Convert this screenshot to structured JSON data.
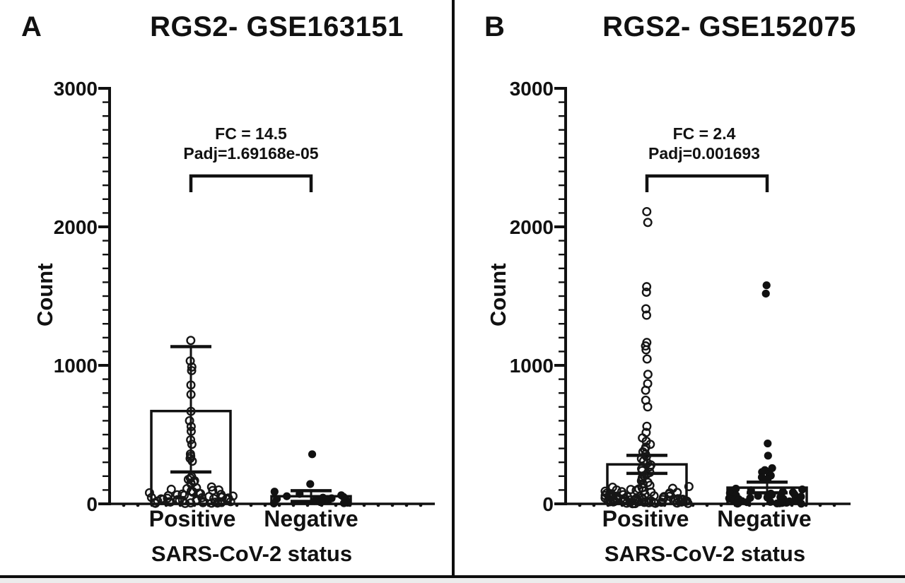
{
  "figure": {
    "panels": [
      {
        "letter": "A",
        "title": "RGS2- GSE163151",
        "fc_label": "FC = 14.5",
        "padj_label": "Padj=1.69168e-05",
        "y_label": "Count",
        "x_title": "SARS-CoV-2 status",
        "categories": [
          "Positive",
          "Negative"
        ]
      },
      {
        "letter": "B",
        "title": "RGS2- GSE152075",
        "fc_label": "FC = 2.4",
        "padj_label": "Padj=0.001693",
        "y_label": "Count",
        "x_title": "SARS-CoV-2 status",
        "categories": [
          "Positive",
          "Negative"
        ]
      }
    ]
  },
  "chart_data": [
    {
      "type": "bar",
      "subtype": "bar-with-scatter-overlay",
      "title": "RGS2- GSE163151",
      "xlabel": "SARS-CoV-2 status",
      "ylabel": "Count",
      "ylim": [
        0,
        3000
      ],
      "y_major_tick": 1000,
      "y_minor_tick": 100,
      "y_tick_labels": [
        "0",
        "1000",
        "2000",
        "3000"
      ],
      "grid": false,
      "legend": "none",
      "annotation": {
        "fold_change": 14.5,
        "padj": "1.69168e-05"
      },
      "categories": [
        "Positive",
        "Negative"
      ],
      "groups": [
        {
          "name": "Positive",
          "marker": "open-circle",
          "bar_mean": 670,
          "err_low": 230,
          "err_high": 1135,
          "points_stack": [
            1180,
            1032,
            988,
            962,
            858,
            790,
            668,
            600,
            558,
            524,
            462,
            430,
            360,
            344,
            328,
            308
          ],
          "points_column": [
            196,
            186,
            176,
            167,
            158,
            150,
            142
          ],
          "points_base": [
            122,
            116,
            110,
            105,
            100,
            96,
            92,
            88,
            84,
            80,
            77,
            74,
            71,
            68,
            65,
            62,
            59,
            56,
            53,
            50,
            48,
            46,
            44,
            42,
            40,
            38,
            36,
            34,
            32,
            30,
            28,
            26,
            24,
            22,
            20,
            18,
            16,
            15,
            13,
            12,
            10,
            9,
            8,
            7,
            6,
            5,
            4,
            3
          ]
        },
        {
          "name": "Negative",
          "marker": "filled-circle",
          "bar_mean": 55,
          "err_low": 18,
          "err_high": 95,
          "points_stack": [
            358,
            143
          ],
          "points_column": [],
          "points_base": [
            88,
            72,
            62,
            55,
            50,
            45,
            40,
            36,
            32,
            28,
            24,
            20,
            16,
            12,
            8,
            5,
            3
          ]
        }
      ]
    },
    {
      "type": "bar",
      "subtype": "bar-with-scatter-overlay",
      "title": "RGS2- GSE152075",
      "xlabel": "SARS-CoV-2 status",
      "ylabel": "Count",
      "ylim": [
        0,
        3000
      ],
      "y_major_tick": 1000,
      "y_minor_tick": 100,
      "y_tick_labels": [
        "0",
        "1000",
        "2000",
        "3000"
      ],
      "grid": false,
      "legend": "none",
      "annotation": {
        "fold_change": 2.4,
        "padj": "0.001693"
      },
      "categories": [
        "Positive",
        "Negative"
      ],
      "groups": [
        {
          "name": "Positive",
          "marker": "open-circle",
          "bar_mean": 285,
          "err_low": 220,
          "err_high": 350,
          "points_stack": [
            2110,
            2032,
            1568,
            1528,
            1408,
            1362,
            1165,
            1140,
            1112,
            1046,
            935,
            868,
            820,
            748,
            700,
            560,
            515
          ],
          "points_column": [
            476,
            452,
            430,
            410,
            392,
            375,
            358,
            342,
            326,
            310,
            295,
            281,
            267,
            253,
            240,
            227,
            214,
            202,
            190,
            178,
            166,
            155,
            144,
            134
          ],
          "points_base": [
            125,
            120,
            116,
            112,
            108,
            104,
            100,
            97,
            94,
            91,
            88,
            85,
            82,
            79,
            76,
            73,
            70,
            68,
            66,
            64,
            62,
            60,
            58,
            56,
            54,
            52,
            50,
            48,
            46,
            44,
            42,
            40,
            38,
            37,
            36,
            35,
            34,
            33,
            32,
            31,
            30,
            29,
            28,
            27,
            26,
            25,
            24,
            23,
            22,
            21,
            20,
            19,
            18,
            17,
            16,
            15,
            14,
            13,
            12,
            11,
            10,
            9,
            8,
            7,
            6,
            5,
            4,
            3,
            2,
            1
          ]
        },
        {
          "name": "Negative",
          "marker": "filled-circle",
          "bar_mean": 117,
          "err_low": 80,
          "err_high": 157,
          "points_stack": [
            1578,
            1518,
            436,
            348
          ],
          "points_column": [
            258,
            244,
            230,
            217,
            204,
            192,
            180
          ],
          "points_base": [
            110,
            104,
            98,
            93,
            88,
            83,
            78,
            74,
            70,
            66,
            62,
            58,
            55,
            52,
            49,
            46,
            43,
            40,
            38,
            36,
            34,
            32,
            30,
            28,
            26,
            24,
            22,
            20,
            18,
            16,
            14,
            12,
            10,
            8,
            6,
            5,
            4,
            3,
            2,
            1
          ]
        }
      ]
    }
  ]
}
